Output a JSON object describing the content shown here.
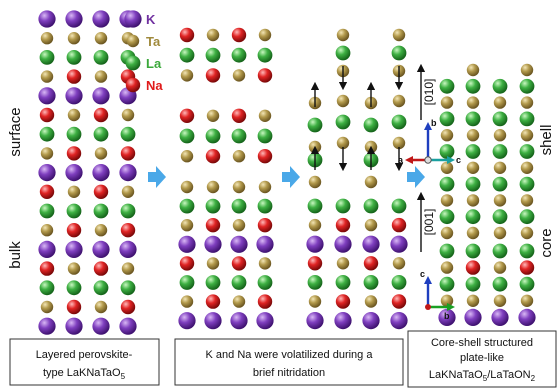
{
  "legend": [
    {
      "symbol": "K",
      "color": "#7030a0"
    },
    {
      "symbol": "Ta",
      "color": "#a08a3c"
    },
    {
      "symbol": "La",
      "color": "#3aa83a"
    },
    {
      "symbol": "Na",
      "color": "#e01a1a"
    }
  ],
  "side_labels": {
    "surface": "surface",
    "bulk": "bulk",
    "shell": "shell",
    "core": "core"
  },
  "directions": {
    "upper": "[010]",
    "lower": "[001]"
  },
  "axes": {
    "upper": {
      "a": "a",
      "b": "b",
      "c": "c"
    },
    "lower": {
      "c": "c",
      "b": "b"
    }
  },
  "captions": {
    "panel1_line1": "Layered perovskite-",
    "panel1_line2_prefix": "type LaKNaTaO",
    "panel1_line2_sub": "5",
    "panel2_line1": "K and Na were volatilized during a",
    "panel2_line2": "brief nitridation",
    "panel3_line1": "Core-shell structured",
    "panel3_line2": "plate-like",
    "panel3_line3_a": "LaKNaTaO",
    "panel3_line3_sub1": "5",
    "panel3_line3_b": "/LaTaON",
    "panel3_line3_sub2": "2"
  },
  "panels": {
    "p1": [
      [
        "K",
        "K",
        "K",
        "K"
      ],
      [
        "Ta",
        "Ta",
        "Ta",
        "Ta"
      ],
      [
        "La",
        "La",
        "La",
        "La"
      ],
      [
        "Ta",
        "Na",
        "Ta",
        "Na"
      ],
      [
        "K",
        "K",
        "K",
        "K"
      ],
      [
        "Na",
        "Ta",
        "Na",
        "Ta"
      ],
      [
        "La",
        "La",
        "La",
        "La"
      ],
      [
        "Ta",
        "Na",
        "Ta",
        "Na"
      ],
      [
        "K",
        "K",
        "K",
        "K"
      ],
      [
        "Na",
        "Ta",
        "Na",
        "Ta"
      ],
      [
        "La",
        "La",
        "La",
        "La"
      ],
      [
        "Ta",
        "Na",
        "Ta",
        "Na"
      ],
      [
        "K",
        "K",
        "K",
        "K"
      ],
      [
        "Na",
        "Ta",
        "Na",
        "Ta"
      ],
      [
        "La",
        "La",
        "La",
        "La"
      ],
      [
        "Ta",
        "Na",
        "Ta",
        "Na"
      ],
      [
        "K",
        "K",
        "K",
        "K"
      ]
    ],
    "p2_top": [
      [
        "Na",
        "Ta",
        "Na",
        "Ta"
      ],
      [
        "La",
        "La",
        "La",
        "La"
      ],
      [
        "Ta",
        "Na",
        "Ta",
        "Na"
      ],
      [
        "",
        "",
        "",
        ""
      ],
      [
        "Na",
        "Ta",
        "Na",
        "Ta"
      ],
      [
        "La",
        "La",
        "La",
        "La"
      ],
      [
        "Ta",
        "Na",
        "Ta",
        "Na"
      ]
    ],
    "p2_bottom": [
      [
        "Ta",
        "Ta",
        "Ta",
        "Ta"
      ],
      [
        "La",
        "La",
        "La",
        "La"
      ],
      [
        "Ta",
        "Na",
        "Ta",
        "Na"
      ],
      [
        "K",
        "K",
        "K",
        "K"
      ],
      [
        "Na",
        "Ta",
        "Na",
        "Ta"
      ],
      [
        "La",
        "La",
        "La",
        "La"
      ],
      [
        "Ta",
        "Na",
        "Ta",
        "Na"
      ],
      [
        "K",
        "K",
        "K",
        "K"
      ]
    ]
  }
}
